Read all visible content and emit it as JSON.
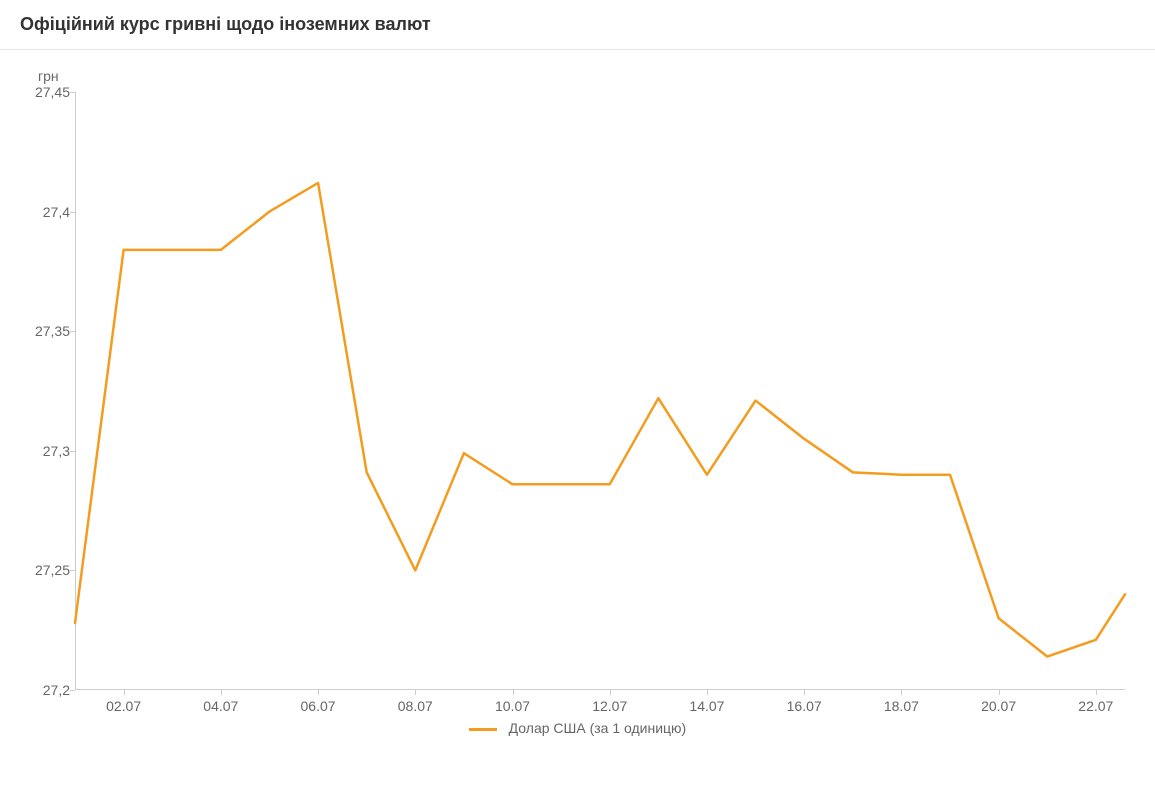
{
  "title": "Офіційний курс гривні щодо іноземних валют",
  "y_unit_label": "грн",
  "chart": {
    "type": "line",
    "x_dates": [
      "01.07",
      "02.07",
      "03.07",
      "04.07",
      "05.07",
      "06.07",
      "07.07",
      "08.07",
      "09.07",
      "10.07",
      "11.07",
      "12.07",
      "13.07",
      "14.07",
      "15.07",
      "16.07",
      "17.07",
      "18.07",
      "19.07",
      "20.07",
      "21.07",
      "22.07"
    ],
    "y_values": [
      27.228,
      27.384,
      27.384,
      27.384,
      27.4,
      27.412,
      27.291,
      27.25,
      27.299,
      27.286,
      27.286,
      27.286,
      27.322,
      27.29,
      27.321,
      27.305,
      27.291,
      27.29,
      27.29,
      27.23,
      27.214,
      27.221
    ],
    "x_final_value": 27.24,
    "x_final_offset_days": 0.6,
    "ylim": [
      27.2,
      27.45
    ],
    "yticks": [
      27.2,
      27.25,
      27.3,
      27.35,
      27.4,
      27.45
    ],
    "ytick_labels": [
      "27,2",
      "27,25",
      "27,3",
      "27,35",
      "27,4",
      "27,45"
    ],
    "xticks_idx": [
      1,
      3,
      5,
      7,
      9,
      11,
      13,
      15,
      17,
      19,
      21
    ],
    "xtick_labels": [
      "02.07",
      "04.07",
      "06.07",
      "08.07",
      "10.07",
      "12.07",
      "14.07",
      "16.07",
      "18.07",
      "20.07",
      "22.07"
    ],
    "line_color": "#f39c1f",
    "line_width": 2.5,
    "background_color": "#ffffff",
    "axis_color": "#cccccc",
    "text_color": "#666666",
    "title_color": "#333333",
    "title_fontsize": 18,
    "tick_fontsize": 14
  },
  "legend": {
    "label": "Долар США (за 1 одиницю)",
    "swatch_color": "#f39c1f"
  }
}
